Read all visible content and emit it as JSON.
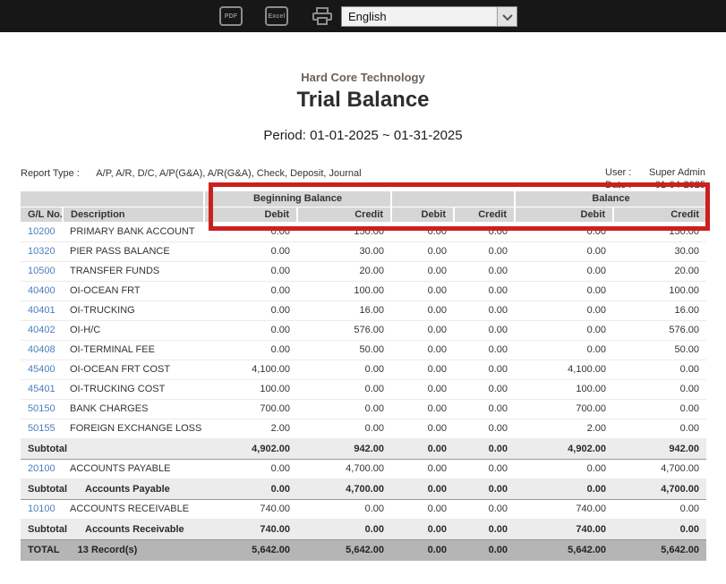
{
  "toolbar": {
    "pdf_icon_label": "PDF",
    "excel_icon_label": "Excel",
    "language_select": {
      "value": "English"
    }
  },
  "header": {
    "company": "Hard Core Technology",
    "title": "Trial Balance",
    "period": "Period: 01-01-2025 ~ 01-31-2025"
  },
  "meta": {
    "report_type_label": "Report Type :",
    "report_type_value": "A/P, A/R, D/C, A/P(G&A), A/R(G&A), Check, Deposit, Journal",
    "user_label": "User :",
    "user_value": "Super Admin",
    "date_label": "Date :",
    "date_value": "01-04-2025"
  },
  "table": {
    "group_headers": {
      "beginning_balance": "Beginning Balance",
      "period_activity": "",
      "balance": "Balance"
    },
    "columns": {
      "gl_no": "G/L No.",
      "description": "Description",
      "debit": "Debit",
      "credit": "Credit"
    },
    "rows": [
      {
        "type": "data",
        "gl_no": "10200",
        "description": "PRIMARY BANK ACCOUNT",
        "values": [
          "0.00",
          "150.00",
          "0.00",
          "0.00",
          "0.00",
          "150.00"
        ]
      },
      {
        "type": "data",
        "gl_no": "10320",
        "description": "PIER PASS BALANCE",
        "values": [
          "0.00",
          "30.00",
          "0.00",
          "0.00",
          "0.00",
          "30.00"
        ]
      },
      {
        "type": "data",
        "gl_no": "10500",
        "description": "TRANSFER FUNDS",
        "values": [
          "0.00",
          "20.00",
          "0.00",
          "0.00",
          "0.00",
          "20.00"
        ]
      },
      {
        "type": "data",
        "gl_no": "40400",
        "description": "OI-OCEAN FRT",
        "values": [
          "0.00",
          "100.00",
          "0.00",
          "0.00",
          "0.00",
          "100.00"
        ]
      },
      {
        "type": "data",
        "gl_no": "40401",
        "description": "OI-TRUCKING",
        "values": [
          "0.00",
          "16.00",
          "0.00",
          "0.00",
          "0.00",
          "16.00"
        ]
      },
      {
        "type": "data",
        "gl_no": "40402",
        "description": "OI-H/C",
        "values": [
          "0.00",
          "576.00",
          "0.00",
          "0.00",
          "0.00",
          "576.00"
        ]
      },
      {
        "type": "data",
        "gl_no": "40408",
        "description": "OI-TERMINAL FEE",
        "values": [
          "0.00",
          "50.00",
          "0.00",
          "0.00",
          "0.00",
          "50.00"
        ]
      },
      {
        "type": "data",
        "gl_no": "45400",
        "description": "OI-OCEAN FRT COST",
        "values": [
          "4,100.00",
          "0.00",
          "0.00",
          "0.00",
          "4,100.00",
          "0.00"
        ]
      },
      {
        "type": "data",
        "gl_no": "45401",
        "description": "OI-TRUCKING COST",
        "values": [
          "100.00",
          "0.00",
          "0.00",
          "0.00",
          "100.00",
          "0.00"
        ]
      },
      {
        "type": "data",
        "gl_no": "50150",
        "description": "BANK CHARGES",
        "values": [
          "700.00",
          "0.00",
          "0.00",
          "0.00",
          "700.00",
          "0.00"
        ]
      },
      {
        "type": "data",
        "gl_no": "50155",
        "description": "FOREIGN EXCHANGE LOSS",
        "values": [
          "2.00",
          "0.00",
          "0.00",
          "0.00",
          "2.00",
          "0.00"
        ]
      },
      {
        "type": "subtotal",
        "label": "Subtotal",
        "sublabel": "",
        "values": [
          "4,902.00",
          "942.00",
          "0.00",
          "0.00",
          "4,902.00",
          "942.00"
        ]
      },
      {
        "type": "data",
        "gl_no": "20100",
        "description": "ACCOUNTS PAYABLE",
        "values": [
          "0.00",
          "4,700.00",
          "0.00",
          "0.00",
          "0.00",
          "4,700.00"
        ]
      },
      {
        "type": "subtotal",
        "label": "Subtotal",
        "sublabel": "Accounts Payable",
        "values": [
          "0.00",
          "4,700.00",
          "0.00",
          "0.00",
          "0.00",
          "4,700.00"
        ]
      },
      {
        "type": "data",
        "gl_no": "10100",
        "description": "ACCOUNTS RECEIVABLE",
        "values": [
          "740.00",
          "0.00",
          "0.00",
          "0.00",
          "740.00",
          "0.00"
        ]
      },
      {
        "type": "subtotal",
        "label": "Subtotal",
        "sublabel": "Accounts Receivable",
        "values": [
          "740.00",
          "0.00",
          "0.00",
          "0.00",
          "740.00",
          "0.00"
        ]
      },
      {
        "type": "total",
        "label": "TOTAL",
        "sublabel": "13 Record(s)",
        "values": [
          "5,642.00",
          "5,642.00",
          "0.00",
          "0.00",
          "5,642.00",
          "5,642.00"
        ]
      }
    ]
  },
  "annotation": {
    "highlight_color": "#cd1f1f"
  }
}
